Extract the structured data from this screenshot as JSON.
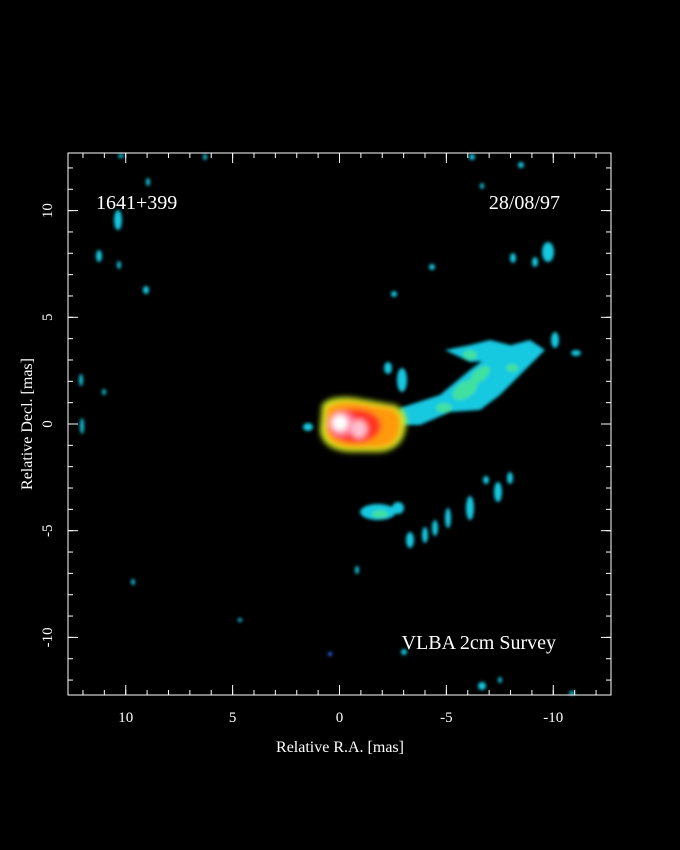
{
  "chart_data": {
    "type": "image",
    "xlabel": "Relative R.A. [mas]",
    "ylabel": "Relative Decl. [mas]",
    "xlim": [
      12.7,
      -12.7
    ],
    "ylim": [
      -12.7,
      12.7
    ],
    "xticks": [
      10,
      5,
      0,
      -5,
      -10
    ],
    "yticks": [
      -10,
      -5,
      0,
      5,
      10
    ],
    "xminorticks": [
      12,
      11,
      10,
      9,
      8,
      7,
      6,
      5,
      4,
      3,
      2,
      1,
      0,
      -1,
      -2,
      -3,
      -4,
      -5,
      -6,
      -7,
      -8,
      -9,
      -10,
      -11,
      -12
    ],
    "yminorticks": [
      -12,
      -11,
      -10,
      -9,
      -8,
      -7,
      -6,
      -5,
      -4,
      -3,
      -2,
      -1,
      0,
      1,
      2,
      3,
      4,
      5,
      6,
      7,
      8,
      9,
      10,
      11,
      12
    ],
    "annotations": [
      "1641+399",
      "28/08/97",
      "VLBA 2cm Survey"
    ],
    "frame_color": "#ffffff"
  }
}
